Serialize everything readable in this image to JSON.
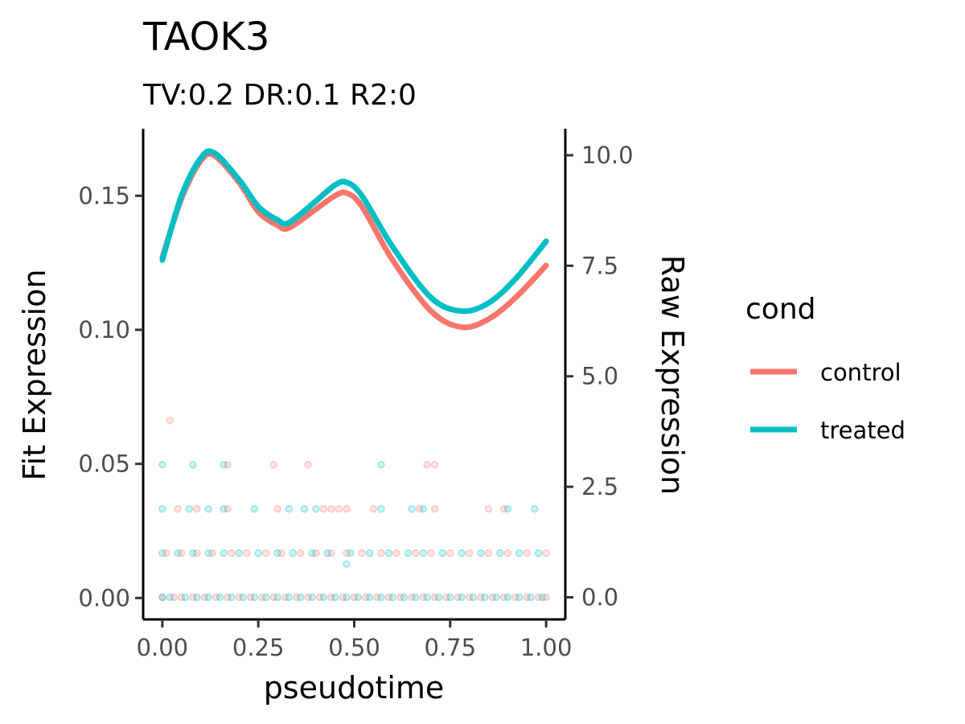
{
  "chart_data": {
    "type": "line",
    "title": "TAOK3",
    "subtitle": "TV:0.2 DR:0.1 R2:0",
    "xlabel": "pseudotime",
    "ylabel": "Fit Expression",
    "ylabel_right": "Raw Expression",
    "xlim": [
      -0.05,
      1.05
    ],
    "ylim": [
      -0.008,
      0.175
    ],
    "ylim_right": [
      -0.5,
      10.6
    ],
    "x_ticks": [
      "0.00",
      "0.25",
      "0.50",
      "0.75",
      "1.00"
    ],
    "y_ticks": [
      "0.00",
      "0.05",
      "0.10",
      "0.15"
    ],
    "y_ticks_right": [
      "0.0",
      "2.5",
      "5.0",
      "7.5",
      "10.0"
    ],
    "grid": false,
    "legend": {
      "title": "cond",
      "placement": "right",
      "entries": [
        "control",
        "treated"
      ]
    },
    "colors": {
      "control": "#F8766D",
      "treated": "#00BFC4"
    },
    "series": [
      {
        "name": "control",
        "x": [
          0.0,
          0.05,
          0.1,
          0.135,
          0.2,
          0.25,
          0.3,
          0.33,
          0.4,
          0.45,
          0.48,
          0.52,
          0.6,
          0.7,
          0.78,
          0.85,
          0.92,
          1.0
        ],
        "y": [
          0.127,
          0.149,
          0.163,
          0.165,
          0.155,
          0.144,
          0.139,
          0.138,
          0.145,
          0.15,
          0.151,
          0.146,
          0.126,
          0.107,
          0.101,
          0.104,
          0.112,
          0.124
        ]
      },
      {
        "name": "treated",
        "x": [
          0.0,
          0.05,
          0.1,
          0.135,
          0.2,
          0.25,
          0.3,
          0.33,
          0.4,
          0.45,
          0.48,
          0.52,
          0.6,
          0.7,
          0.78,
          0.85,
          0.92,
          1.0
        ],
        "y": [
          0.126,
          0.15,
          0.164,
          0.166,
          0.156,
          0.146,
          0.141,
          0.14,
          0.148,
          0.154,
          0.155,
          0.15,
          0.131,
          0.112,
          0.107,
          0.11,
          0.119,
          0.133
        ]
      }
    ],
    "raw_points": {
      "control": {
        "0": [
          0.0,
          0.03,
          0.05,
          0.08,
          0.11,
          0.14,
          0.17,
          0.2,
          0.23,
          0.26,
          0.29,
          0.32,
          0.35,
          0.38,
          0.41,
          0.44,
          0.47,
          0.5,
          0.53,
          0.56,
          0.59,
          0.62,
          0.65,
          0.68,
          0.71,
          0.74,
          0.77,
          0.8,
          0.83,
          0.86,
          0.89,
          0.92,
          0.95,
          0.98,
          1.0
        ],
        "1": [
          0.01,
          0.05,
          0.09,
          0.13,
          0.18,
          0.22,
          0.27,
          0.31,
          0.36,
          0.4,
          0.44,
          0.48,
          0.52,
          0.57,
          0.61,
          0.66,
          0.7,
          0.75,
          0.8,
          0.85,
          0.9,
          0.95,
          1.0
        ],
        "2": [
          0.04,
          0.09,
          0.17,
          0.3,
          0.42,
          0.44,
          0.46,
          0.48,
          0.55,
          0.67,
          0.71,
          0.85,
          0.89
        ],
        "3": [
          0.17,
          0.29,
          0.38,
          0.69,
          0.71
        ],
        "4": [
          0.02
        ]
      },
      "treated": {
        "0": [
          0.0,
          0.02,
          0.06,
          0.09,
          0.12,
          0.15,
          0.18,
          0.21,
          0.24,
          0.27,
          0.3,
          0.33,
          0.36,
          0.39,
          0.42,
          0.45,
          0.48,
          0.51,
          0.54,
          0.57,
          0.6,
          0.63,
          0.66,
          0.69,
          0.72,
          0.75,
          0.78,
          0.81,
          0.84,
          0.87,
          0.9,
          0.93,
          0.96,
          0.99
        ],
        "1": [
          0.0,
          0.04,
          0.08,
          0.12,
          0.16,
          0.2,
          0.25,
          0.3,
          0.34,
          0.39,
          0.43,
          0.49,
          0.54,
          0.59,
          0.64,
          0.68,
          0.73,
          0.78,
          0.83,
          0.88,
          0.93,
          0.98
        ],
        "2": [
          0.0,
          0.07,
          0.12,
          0.16,
          0.24,
          0.33,
          0.37,
          0.4,
          0.57,
          0.65,
          0.68,
          0.9,
          0.97
        ],
        "3": [
          0.0,
          0.08,
          0.16,
          0.57
        ],
        "0.75": [
          0.48
        ]
      }
    }
  }
}
